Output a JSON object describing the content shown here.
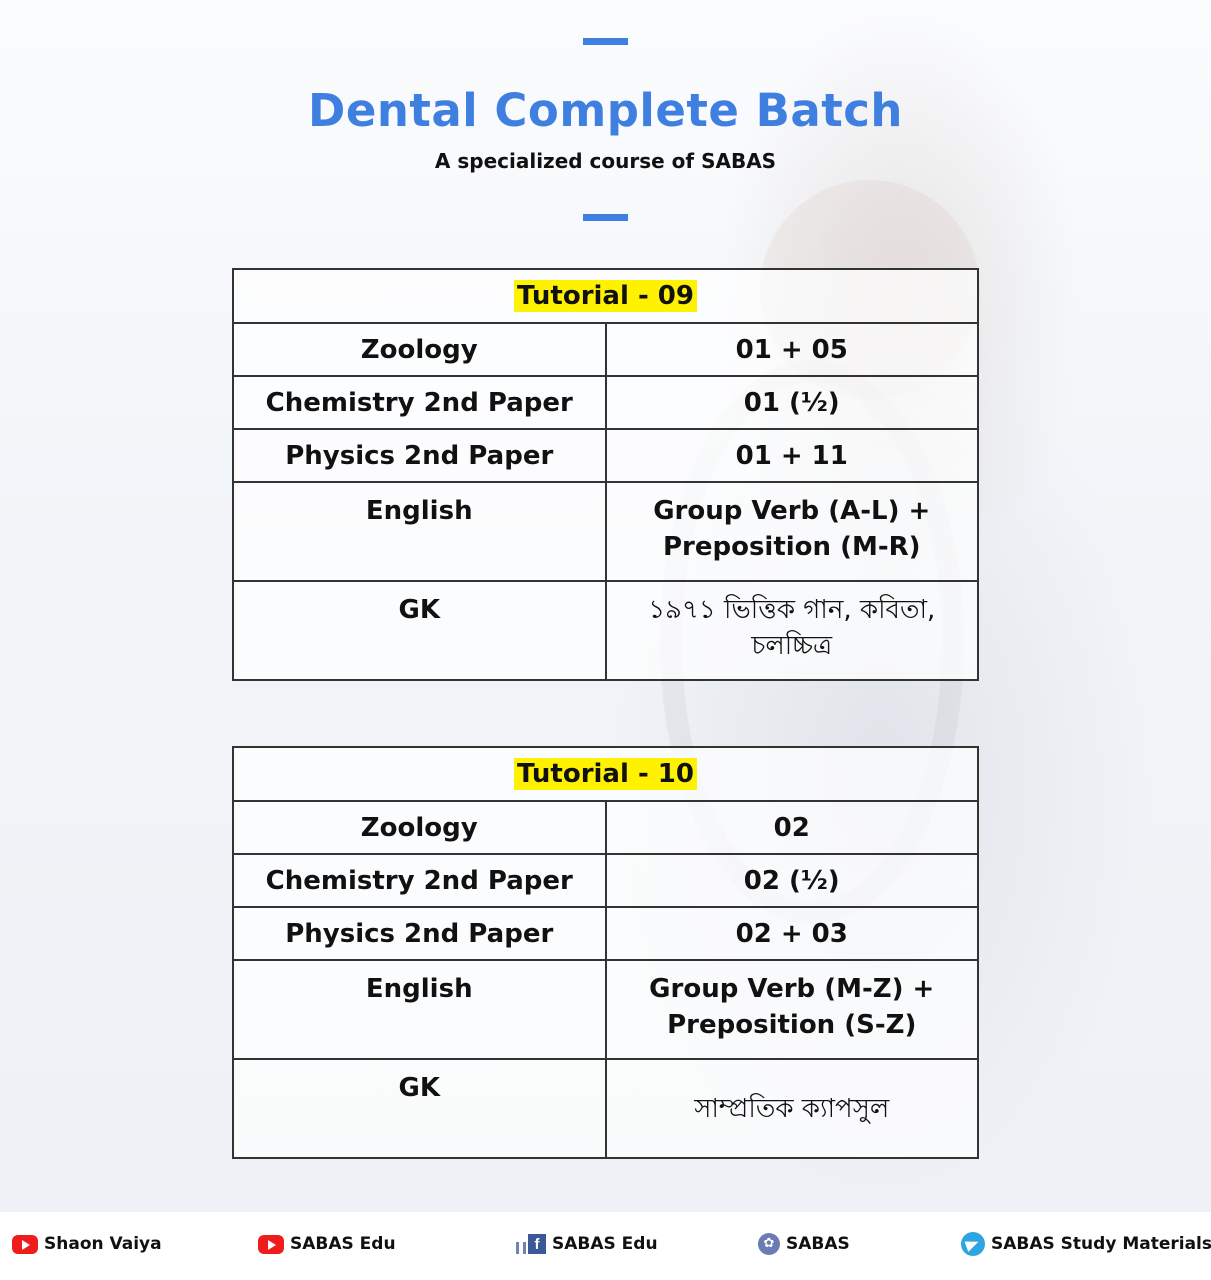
{
  "header": {
    "title": "Dental Complete Batch",
    "subtitle": "A specialized course of SABAS"
  },
  "tables": [
    {
      "title": "Tutorial - 09",
      "rows": [
        {
          "subject": "Zoology",
          "content": [
            "01 + 05"
          ]
        },
        {
          "subject": "Chemistry 2nd Paper",
          "content": [
            "01 (½)"
          ]
        },
        {
          "subject": "Physics 2nd Paper",
          "content": [
            "01 + 11"
          ]
        },
        {
          "subject": "English",
          "content": [
            "Group Verb (A-L) +",
            "Preposition (M-R)"
          ]
        },
        {
          "subject": "GK",
          "content": [
            "১৯৭১ ভিত্তিক গান, কবিতা,",
            "চলচ্চিত্র"
          ]
        }
      ]
    },
    {
      "title": "Tutorial - 10",
      "rows": [
        {
          "subject": "Zoology",
          "content": [
            "02"
          ]
        },
        {
          "subject": "Chemistry 2nd Paper",
          "content": [
            "02 (½)"
          ]
        },
        {
          "subject": "Physics 2nd Paper",
          "content": [
            "02 + 03"
          ]
        },
        {
          "subject": "English",
          "content": [
            "Group Verb (M-Z) +",
            "Preposition (S-Z)"
          ]
        },
        {
          "subject": "GK",
          "content": [
            "সাম্প্রতিক ক্যাপসুল"
          ]
        }
      ]
    }
  ],
  "footer": {
    "items": [
      {
        "icon": "youtube-icon",
        "label": "Shaon Vaiya"
      },
      {
        "icon": "youtube-icon",
        "label": "SABAS Edu"
      },
      {
        "icon": "facebook-icon",
        "label": "SABAS Edu"
      },
      {
        "icon": "sabas-logo-icon",
        "label": "SABAS"
      },
      {
        "icon": "telegram-icon",
        "label": "SABAS Study Materials"
      }
    ]
  },
  "colors": {
    "accent": "#3f7fe0",
    "highlight": "#fff200",
    "youtube": "#ee1c1b",
    "facebook": "#3b5998",
    "telegram": "#2ca5e0"
  }
}
